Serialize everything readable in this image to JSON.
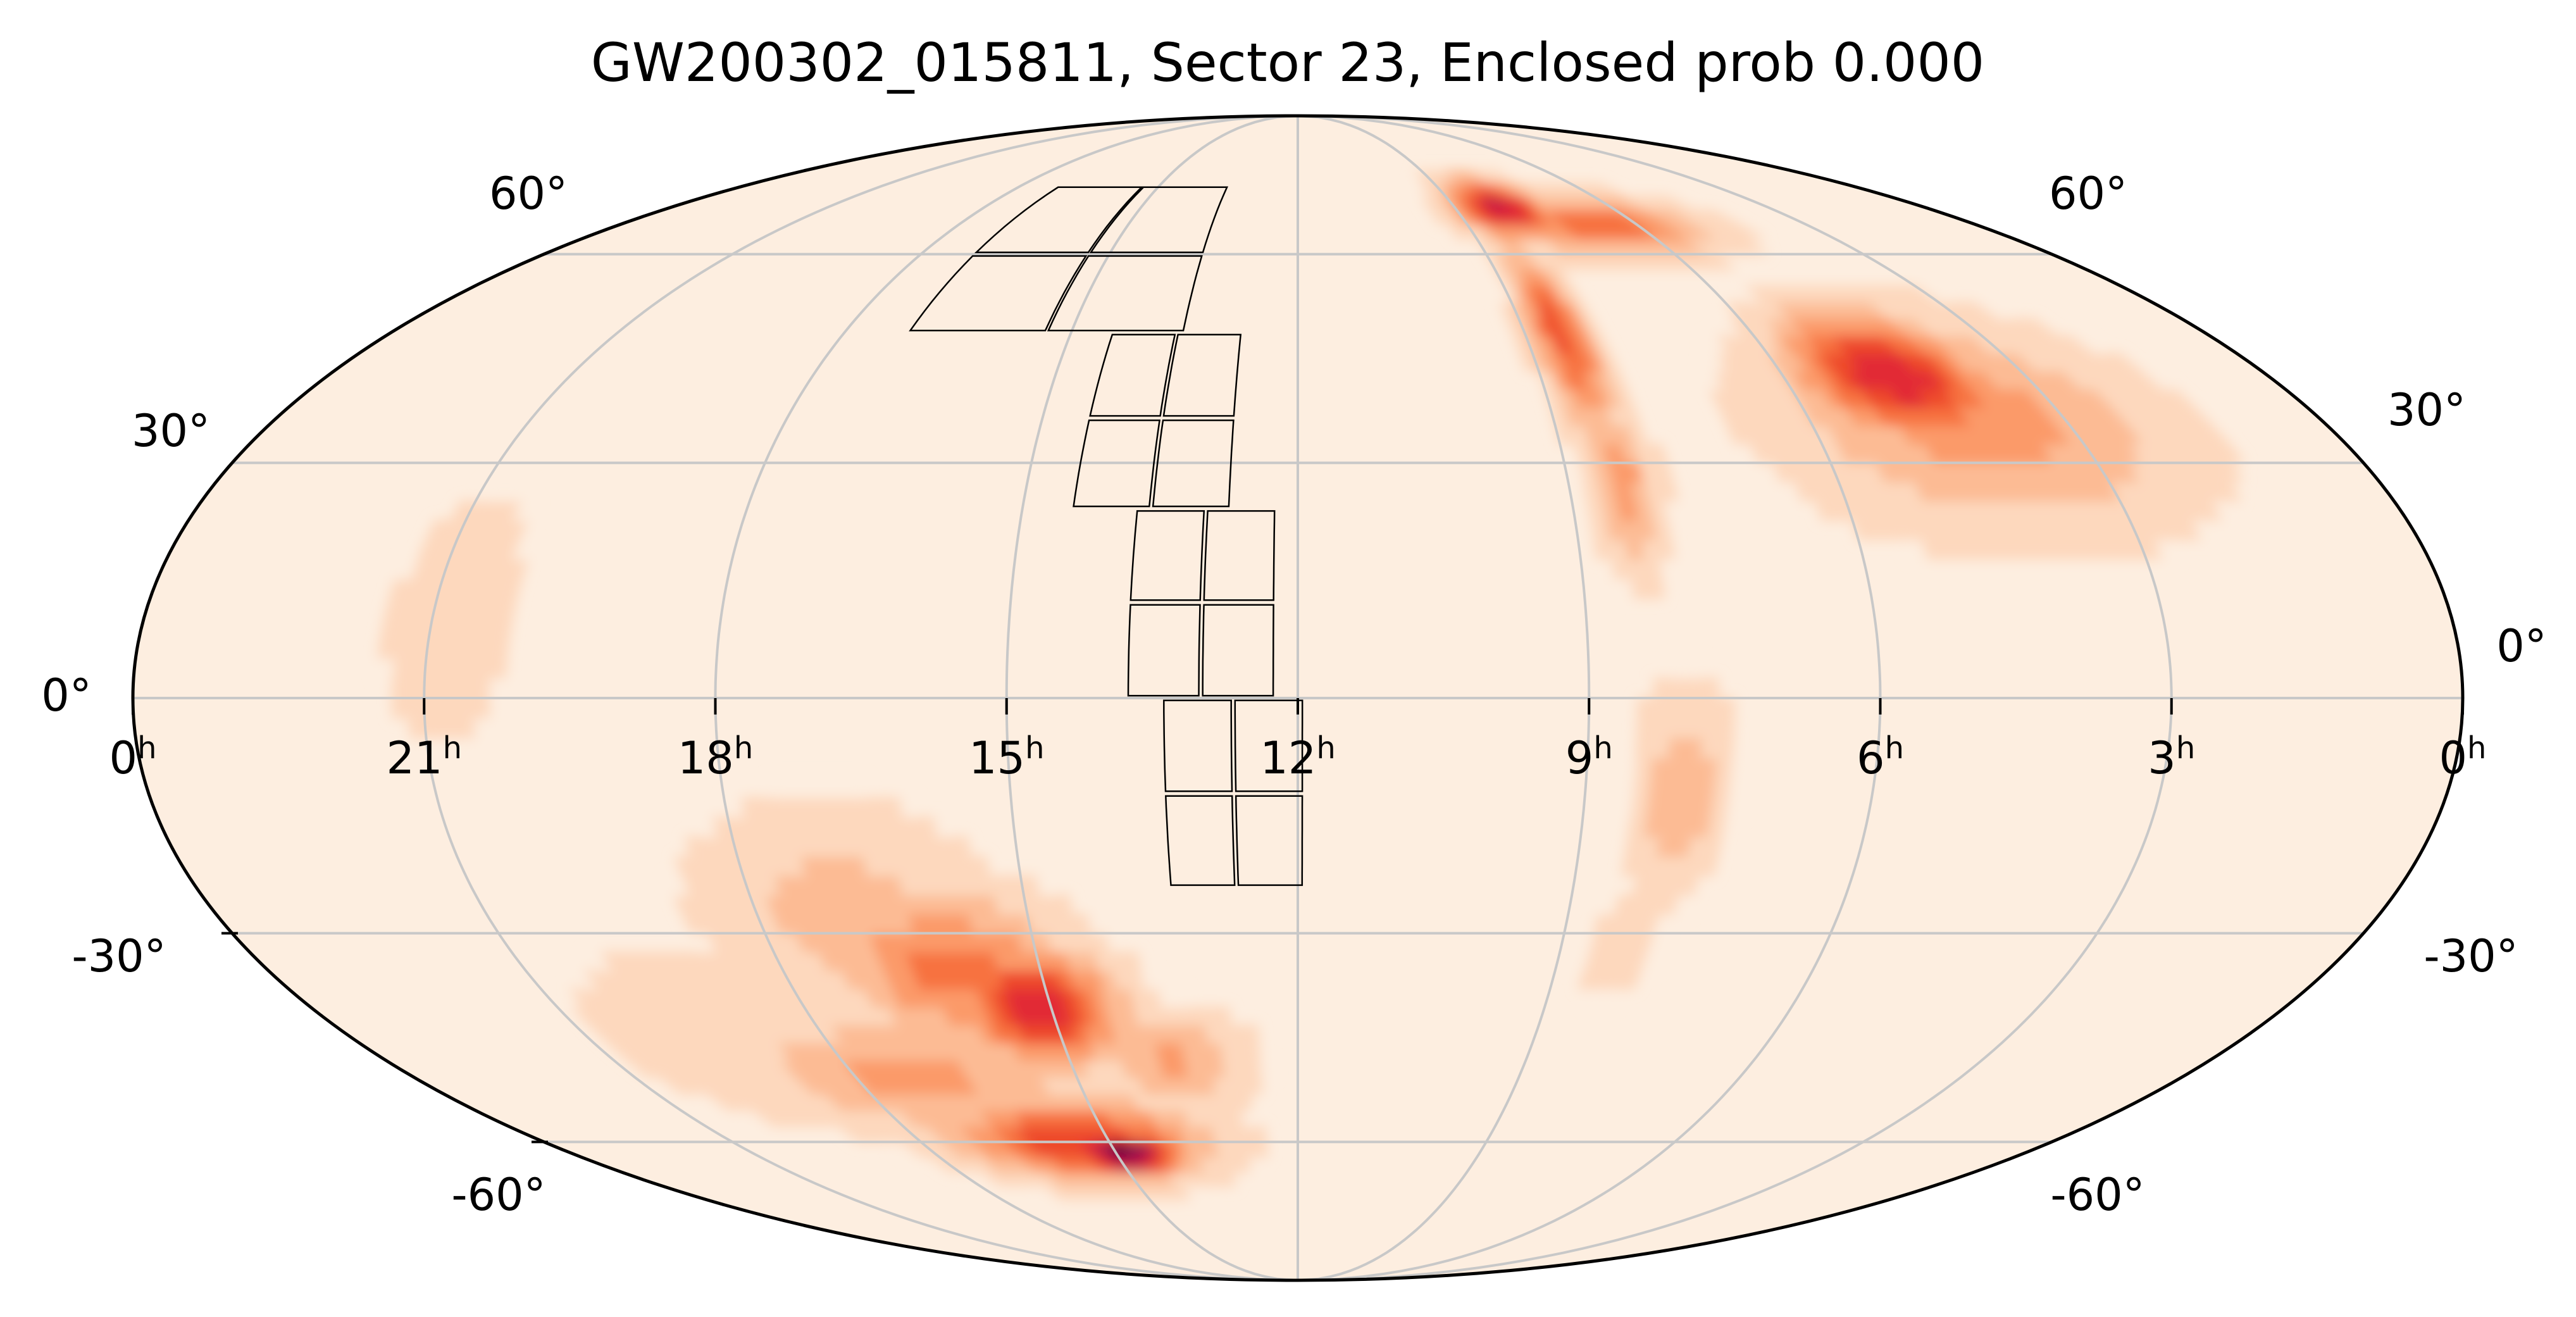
{
  "title": "GW200302_015811, Sector 23, Enclosed prob 0.000",
  "projection": "mollweide",
  "colormap": [
    "#fdeee0",
    "#fdd8bd",
    "#fcbb94",
    "#fb9a69",
    "#f7723f",
    "#ee4a2c",
    "#e22a35",
    "#c41646",
    "#8f0b4e",
    "#3b0437"
  ],
  "colors": {
    "graticule": "#c8c8c8",
    "outline": "#000000",
    "background": "#fdeee0"
  },
  "ra_labels": [
    {
      "hour": "0",
      "sup": "h",
      "ra_deg": 360
    },
    {
      "hour": "21",
      "sup": "h",
      "ra_deg": 315
    },
    {
      "hour": "18",
      "sup": "h",
      "ra_deg": 270
    },
    {
      "hour": "15",
      "sup": "h",
      "ra_deg": 225
    },
    {
      "hour": "12",
      "sup": "h",
      "ra_deg": 180
    },
    {
      "hour": "9",
      "sup": "h",
      "ra_deg": 135
    },
    {
      "hour": "6",
      "sup": "h",
      "ra_deg": 90
    },
    {
      "hour": "3",
      "sup": "h",
      "ra_deg": 45
    },
    {
      "hour": "0",
      "sup": "h",
      "ra_deg": 0
    }
  ],
  "dec_labels_left": [
    "60°",
    "30°",
    "0°",
    "-30°",
    "-60°"
  ],
  "dec_labels_right": [
    "60°",
    "30°",
    "0°",
    "-30°",
    "-60°"
  ],
  "dec_values": [
    60,
    30,
    0,
    -30,
    -60
  ],
  "probability_blobs": [
    {
      "name": "south-arc-core",
      "ra": 223,
      "dec": -62,
      "ra_sigma": 9,
      "dec_sigma": 2.6,
      "level": 1.0
    },
    {
      "name": "south-arc-main",
      "ra": 232,
      "dec": -60,
      "ra_sigma": 20,
      "dec_sigma": 4.5,
      "level": 0.62
    },
    {
      "name": "south-arc-upper",
      "ra": 228,
      "dec": -40,
      "ra_sigma": 10,
      "dec_sigma": 5.5,
      "level": 0.7
    },
    {
      "name": "south-arc-ridge",
      "ra": 240,
      "dec": -35,
      "ra_sigma": 14,
      "dec_sigma": 7,
      "level": 0.45
    },
    {
      "name": "south-arc-tail",
      "ra": 258,
      "dec": -50,
      "ra_sigma": 22,
      "dec_sigma": 6,
      "level": 0.32
    },
    {
      "name": "south-arc-diffuse",
      "ra": 255,
      "dec": -28,
      "ra_sigma": 16,
      "dec_sigma": 10,
      "level": 0.22
    },
    {
      "name": "south-arc-west",
      "ra": 290,
      "dec": -45,
      "ra_sigma": 18,
      "dec_sigma": 10,
      "level": 0.12
    },
    {
      "name": "south-arc-east",
      "ra": 205,
      "dec": -48,
      "ra_sigma": 10,
      "dec_sigma": 5,
      "level": 0.3
    },
    {
      "name": "western-faint-band",
      "ra": 312,
      "dec": 10,
      "ra_sigma": 9,
      "dec_sigma": 15,
      "level": 0.1
    },
    {
      "name": "north-east-peak",
      "ra": 122,
      "dec": 68,
      "ra_sigma": 9,
      "dec_sigma": 3.5,
      "level": 0.78
    },
    {
      "name": "north-east-band",
      "ra": 100,
      "dec": 65,
      "ra_sigma": 18,
      "dec_sigma": 3.5,
      "level": 0.48
    },
    {
      "name": "north-east-lobe",
      "ra": 70,
      "dec": 42,
      "ra_sigma": 12,
      "dec_sigma": 6,
      "level": 0.72
    },
    {
      "name": "north-east-lobe-wide",
      "ra": 62,
      "dec": 36,
      "ra_sigma": 22,
      "dec_sigma": 10,
      "level": 0.35
    },
    {
      "name": "vertical-strip-north",
      "ra": 128,
      "dec": 48,
      "ra_sigma": 4,
      "dec_sigma": 9,
      "level": 0.55
    },
    {
      "name": "vertical-strip-mid",
      "ra": 126,
      "dec": 28,
      "ra_sigma": 4,
      "dec_sigma": 8,
      "level": 0.33
    },
    {
      "name": "vertical-strip-south",
      "ra": 120,
      "dec": -12,
      "ra_sigma": 5,
      "dec_sigma": 9,
      "level": 0.25
    },
    {
      "name": "vertical-strip-low",
      "ra": 125,
      "dec": -32,
      "ra_sigma": 7,
      "dec_sigma": 8,
      "level": 0.08
    }
  ],
  "tess_sector_ccds": [
    {
      "camera": 1,
      "ra_center": 190,
      "dec_center": -12,
      "ra_span": 22,
      "dec_span": 24
    },
    {
      "camera": 2,
      "ra_center": 195,
      "dec_center": 12,
      "ra_span": 23,
      "dec_span": 24
    },
    {
      "camera": 3,
      "ra_center": 204,
      "dec_center": 36,
      "ra_span": 26,
      "dec_span": 24
    },
    {
      "camera": 4,
      "ra_center": 230,
      "dec_center": 60,
      "ra_span": 55,
      "dec_span": 24
    }
  ]
}
